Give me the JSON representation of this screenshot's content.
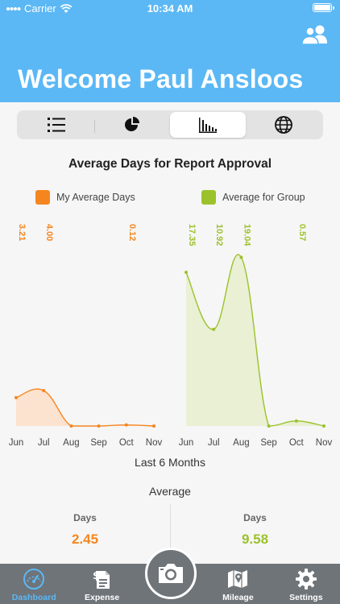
{
  "status_bar": {
    "carrier": "Carrier",
    "time": "10:34 AM"
  },
  "header": {
    "welcome": "Welcome Paul Ansloos",
    "users_icon": "users-icon"
  },
  "segments": [
    {
      "name": "list",
      "icon": "list-icon",
      "active": false
    },
    {
      "name": "pie",
      "icon": "pie-chart-icon",
      "active": false
    },
    {
      "name": "bar",
      "icon": "bar-chart-icon",
      "active": true
    },
    {
      "name": "globe",
      "icon": "globe-icon",
      "active": false
    }
  ],
  "chart_data": [
    {
      "type": "area",
      "title": "Average Days for Report Approval",
      "series": [
        {
          "name": "My Average Days",
          "color": "#f5861f",
          "fill": "#fbe3cf"
        }
      ],
      "categories": [
        "Jun",
        "Jul",
        "Aug",
        "Sep",
        "Oct",
        "Nov"
      ],
      "values": [
        3.21,
        4.0,
        0,
        0,
        0.12,
        0
      ],
      "data_labels": [
        "3.21",
        "4.00",
        "",
        "",
        "0.12",
        ""
      ],
      "ylim": [
        0,
        20
      ],
      "grid": false
    },
    {
      "type": "area",
      "series": [
        {
          "name": "Average for Group",
          "color": "#9bc22b",
          "fill": "#e9f0d4"
        }
      ],
      "categories": [
        "Jun",
        "Jul",
        "Aug",
        "Sep",
        "Oct",
        "Nov"
      ],
      "values": [
        17.35,
        10.92,
        19.04,
        0,
        0.57,
        0
      ],
      "data_labels": [
        "17.35",
        "10.92",
        "19.04",
        "",
        "0.57",
        ""
      ],
      "ylim": [
        0,
        20
      ],
      "grid": false
    }
  ],
  "chart_footer": "Last 6 Months",
  "averages": {
    "title": "Average",
    "mine": {
      "label": "Days",
      "value": "2.45",
      "color": "#f5861f"
    },
    "group": {
      "label": "Days",
      "value": "9.58",
      "color": "#9bc22b"
    }
  },
  "tabbar": {
    "items": [
      {
        "label": "Dashboard",
        "icon": "speedometer-icon",
        "active": true
      },
      {
        "label": "Expense",
        "icon": "receipt-icon",
        "active": false
      },
      {
        "label": "",
        "icon": "camera-icon",
        "active": false
      },
      {
        "label": "Mileage",
        "icon": "map-icon",
        "active": false
      },
      {
        "label": "Settings",
        "icon": "gear-icon",
        "active": false
      }
    ]
  }
}
